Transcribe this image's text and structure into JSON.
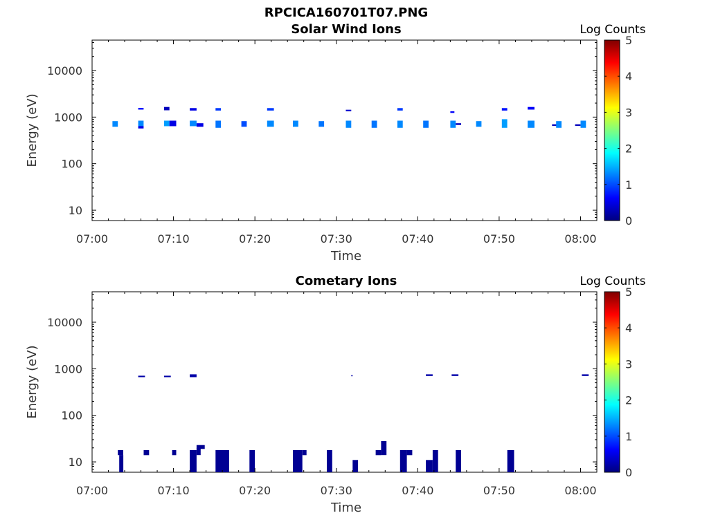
{
  "title": "RPCICA160701T07.PNG",
  "colormap": [
    "#00007f",
    "#0000ff",
    "#007fff",
    "#00ffff",
    "#7fff7f",
    "#ffff00",
    "#ff7f00",
    "#ff0000",
    "#7f0000"
  ],
  "chart_data": [
    {
      "type": "heatmap",
      "title": "Solar Wind Ions",
      "xlabel": "Time",
      "ylabel": "Energy (eV)",
      "xlim": [
        "07:00",
        "08:02"
      ],
      "xticks": [
        "07:00",
        "07:10",
        "07:20",
        "07:30",
        "07:40",
        "07:50",
        "08:00"
      ],
      "ylim": [
        6,
        45000
      ],
      "yscale": "log",
      "yticks": [
        10,
        100,
        1000,
        10000
      ],
      "ytick_labels": [
        "10",
        "100",
        "1000",
        "10000"
      ],
      "colorbar": {
        "label": "Log Counts",
        "range": [
          0,
          5
        ],
        "ticks": [
          "0",
          "1",
          "2",
          "3",
          "4",
          "5"
        ]
      },
      "cells": [
        {
          "t": [
            "07:02:30",
            "07:03:10"
          ],
          "e": [
            620,
            820
          ],
          "v": 1.3
        },
        {
          "t": [
            "07:05:40",
            "07:06:20"
          ],
          "e": [
            1450,
            1580
          ],
          "v": 0.7
        },
        {
          "t": [
            "07:05:40",
            "07:06:20"
          ],
          "e": [
            640,
            840
          ],
          "v": 1.3
        },
        {
          "t": [
            "07:05:40",
            "07:06:20"
          ],
          "e": [
            570,
            640
          ],
          "v": 0.5
        },
        {
          "t": [
            "07:08:50",
            "07:09:30"
          ],
          "e": [
            1400,
            1650
          ],
          "v": 0.3
        },
        {
          "t": [
            "07:08:50",
            "07:09:30"
          ],
          "e": [
            640,
            840
          ],
          "v": 1.4
        },
        {
          "t": [
            "07:09:30",
            "07:10:20"
          ],
          "e": [
            640,
            840
          ],
          "v": 0.5
        },
        {
          "t": [
            "07:12:00",
            "07:12:50"
          ],
          "e": [
            1380,
            1560
          ],
          "v": 0.5
        },
        {
          "t": [
            "07:12:00",
            "07:12:50"
          ],
          "e": [
            640,
            840
          ],
          "v": 1.3
        },
        {
          "t": [
            "07:12:50",
            "07:13:40"
          ],
          "e": [
            620,
            740
          ],
          "v": 0.5
        },
        {
          "t": [
            "07:15:10",
            "07:15:50"
          ],
          "e": [
            1380,
            1560
          ],
          "v": 0.9
        },
        {
          "t": [
            "07:15:10",
            "07:15:50"
          ],
          "e": [
            590,
            840
          ],
          "v": 1.2
        },
        {
          "t": [
            "07:18:20",
            "07:19:00"
          ],
          "e": [
            620,
            820
          ],
          "v": 1.0
        },
        {
          "t": [
            "07:21:30",
            "07:22:20"
          ],
          "e": [
            1380,
            1560
          ],
          "v": 0.9
        },
        {
          "t": [
            "07:21:30",
            "07:22:20"
          ],
          "e": [
            620,
            840
          ],
          "v": 1.3
        },
        {
          "t": [
            "07:24:40",
            "07:25:20"
          ],
          "e": [
            620,
            840
          ],
          "v": 1.3
        },
        {
          "t": [
            "07:27:50",
            "07:28:30"
          ],
          "e": [
            620,
            820
          ],
          "v": 1.2
        },
        {
          "t": [
            "07:31:10",
            "07:31:50"
          ],
          "e": [
            1330,
            1440
          ],
          "v": 0.4
        },
        {
          "t": [
            "07:31:10",
            "07:31:50"
          ],
          "e": [
            590,
            840
          ],
          "v": 1.3
        },
        {
          "t": [
            "07:34:20",
            "07:35:00"
          ],
          "e": [
            590,
            840
          ],
          "v": 1.2
        },
        {
          "t": [
            "07:37:30",
            "07:38:10"
          ],
          "e": [
            1380,
            1560
          ],
          "v": 0.9
        },
        {
          "t": [
            "07:37:30",
            "07:38:10"
          ],
          "e": [
            590,
            840
          ],
          "v": 1.3
        },
        {
          "t": [
            "07:40:40",
            "07:41:20"
          ],
          "e": [
            590,
            840
          ],
          "v": 1.2
        },
        {
          "t": [
            "07:44:00",
            "07:44:30"
          ],
          "e": [
            1230,
            1330
          ],
          "v": 0.6
        },
        {
          "t": [
            "07:44:00",
            "07:44:40"
          ],
          "e": [
            590,
            840
          ],
          "v": 1.3
        },
        {
          "t": [
            "07:44:40",
            "07:45:20"
          ],
          "e": [
            680,
            740
          ],
          "v": 0.3
        },
        {
          "t": [
            "07:47:10",
            "07:47:50"
          ],
          "e": [
            620,
            820
          ],
          "v": 1.3
        },
        {
          "t": [
            "07:50:20",
            "07:51:00"
          ],
          "e": [
            1380,
            1560
          ],
          "v": 0.7
        },
        {
          "t": [
            "07:50:20",
            "07:51:00"
          ],
          "e": [
            590,
            900
          ],
          "v": 1.4
        },
        {
          "t": [
            "07:53:30",
            "07:54:20"
          ],
          "e": [
            1450,
            1650
          ],
          "v": 0.6
        },
        {
          "t": [
            "07:53:30",
            "07:54:20"
          ],
          "e": [
            590,
            840
          ],
          "v": 1.3
        },
        {
          "t": [
            "07:56:30",
            "07:57:20"
          ],
          "e": [
            650,
            700
          ],
          "v": 0.3
        },
        {
          "t": [
            "07:57:00",
            "07:57:40"
          ],
          "e": [
            590,
            820
          ],
          "v": 1.3
        },
        {
          "t": [
            "07:59:20",
            "08:00:00"
          ],
          "e": [
            650,
            700
          ],
          "v": 0.3
        },
        {
          "t": [
            "08:00:00",
            "08:00:40"
          ],
          "e": [
            590,
            840
          ],
          "v": 1.3
        }
      ]
    },
    {
      "type": "heatmap",
      "title": "Cometary Ions",
      "xlabel": "Time",
      "ylabel": "Energy (eV)",
      "xlim": [
        "07:00",
        "08:02"
      ],
      "xticks": [
        "07:00",
        "07:10",
        "07:20",
        "07:30",
        "07:40",
        "07:50",
        "08:00"
      ],
      "ylim": [
        6,
        45000
      ],
      "yscale": "log",
      "yticks": [
        10,
        100,
        1000,
        10000
      ],
      "ytick_labels": [
        "10",
        "100",
        "1000",
        "10000"
      ],
      "colorbar": {
        "label": "Log Counts",
        "range": [
          0,
          5
        ],
        "ticks": [
          "0",
          "1",
          "2",
          "3",
          "4",
          "5"
        ]
      },
      "cells": [
        {
          "t": [
            "07:05:40",
            "07:06:30"
          ],
          "e": [
            660,
            710
          ],
          "v": 0.2
        },
        {
          "t": [
            "07:08:50",
            "07:09:40"
          ],
          "e": [
            660,
            710
          ],
          "v": 0.2
        },
        {
          "t": [
            "07:12:00",
            "07:12:50"
          ],
          "e": [
            660,
            760
          ],
          "v": 0.2
        },
        {
          "t": [
            "07:31:50",
            "07:32:00"
          ],
          "e": [
            690,
            730
          ],
          "v": 0.2
        },
        {
          "t": [
            "07:41:00",
            "07:41:50"
          ],
          "e": [
            700,
            760
          ],
          "v": 0.2
        },
        {
          "t": [
            "07:44:10",
            "07:45:00"
          ],
          "e": [
            700,
            760
          ],
          "v": 0.2
        },
        {
          "t": [
            "08:00:10",
            "08:01:00"
          ],
          "e": [
            700,
            760
          ],
          "v": 0.2
        },
        {
          "t": [
            "07:03:10",
            "07:03:50"
          ],
          "e": [
            14,
            18
          ],
          "v": 0.1
        },
        {
          "t": [
            "07:03:20",
            "07:03:50"
          ],
          "e": [
            6,
            14
          ],
          "v": 0.1
        },
        {
          "t": [
            "07:06:20",
            "07:07:00"
          ],
          "e": [
            14,
            18
          ],
          "v": 0.1
        },
        {
          "t": [
            "07:09:50",
            "07:10:20"
          ],
          "e": [
            14,
            18
          ],
          "v": 0.1
        },
        {
          "t": [
            "07:12:00",
            "07:12:50"
          ],
          "e": [
            6,
            18
          ],
          "v": 0.1
        },
        {
          "t": [
            "07:12:50",
            "07:13:20"
          ],
          "e": [
            14,
            20
          ],
          "v": 0.1
        },
        {
          "t": [
            "07:12:50",
            "07:13:50"
          ],
          "e": [
            19,
            23
          ],
          "v": 0.1
        },
        {
          "t": [
            "07:15:10",
            "07:16:50"
          ],
          "e": [
            6,
            18
          ],
          "v": 0.1
        },
        {
          "t": [
            "07:19:20",
            "07:20:00"
          ],
          "e": [
            6,
            18
          ],
          "v": 0.1
        },
        {
          "t": [
            "07:24:40",
            "07:25:50"
          ],
          "e": [
            6,
            18
          ],
          "v": 0.1
        },
        {
          "t": [
            "07:25:50",
            "07:26:20"
          ],
          "e": [
            14,
            18
          ],
          "v": 0.1
        },
        {
          "t": [
            "07:28:50",
            "07:29:30"
          ],
          "e": [
            6,
            18
          ],
          "v": 0.1
        },
        {
          "t": [
            "07:32:00",
            "07:32:40"
          ],
          "e": [
            6,
            11
          ],
          "v": 0.1
        },
        {
          "t": [
            "07:34:50",
            "07:35:30"
          ],
          "e": [
            14,
            18
          ],
          "v": 0.1
        },
        {
          "t": [
            "07:35:30",
            "07:36:10"
          ],
          "e": [
            14,
            28
          ],
          "v": 0.1
        },
        {
          "t": [
            "07:37:50",
            "07:38:40"
          ],
          "e": [
            6,
            18
          ],
          "v": 0.1
        },
        {
          "t": [
            "07:38:40",
            "07:39:20"
          ],
          "e": [
            14,
            18
          ],
          "v": 0.1
        },
        {
          "t": [
            "07:41:00",
            "07:41:50"
          ],
          "e": [
            6,
            11
          ],
          "v": 0.1
        },
        {
          "t": [
            "07:41:50",
            "07:42:30"
          ],
          "e": [
            6,
            18
          ],
          "v": 0.1
        },
        {
          "t": [
            "07:44:40",
            "07:45:20"
          ],
          "e": [
            6,
            18
          ],
          "v": 0.1
        },
        {
          "t": [
            "07:51:00",
            "07:51:50"
          ],
          "e": [
            6,
            18
          ],
          "v": 0.1
        }
      ]
    }
  ]
}
